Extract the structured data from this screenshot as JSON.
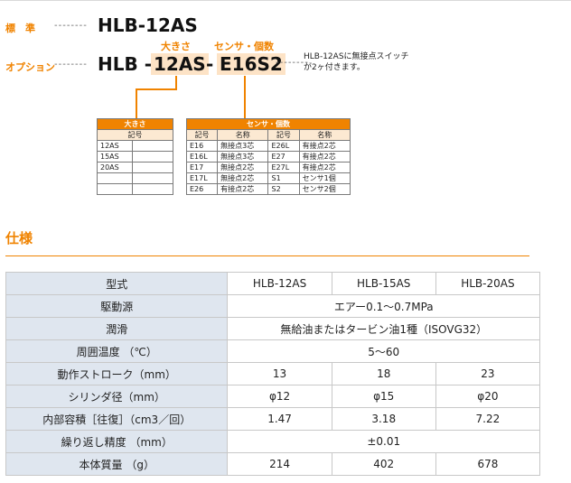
{
  "standard": {
    "label": "標　準",
    "dashes": "--------",
    "model": "HLB-12AS"
  },
  "option": {
    "label": "オプション",
    "dashes": "--------",
    "prefix": "HLB -",
    "size_code": "12AS",
    "dash": "-",
    "sensor_code": "E16S2",
    "size_caption": "大きさ",
    "sensor_caption": "センサ・個数",
    "note_dashes": "--------",
    "note_line1": "HLB-12ASに無接点スイッチ",
    "note_line2": "が2ヶ付きます。"
  },
  "size_table": {
    "title": "大きさ",
    "column": "記号",
    "rows": [
      "12AS",
      "15AS",
      "20AS",
      "",
      ""
    ]
  },
  "sensor_table": {
    "title": "センサ・個数",
    "headers": [
      "記号",
      "名称",
      "記号",
      "名称"
    ],
    "rows": [
      [
        "E16",
        "無接点3芯",
        "E26L",
        "有接点2芯"
      ],
      [
        "E16L",
        "無接点3芯",
        "E27",
        "有接点2芯"
      ],
      [
        "E17",
        "無接点2芯",
        "E27L",
        "有接点2芯"
      ],
      [
        "E17L",
        "無接点2芯",
        "S1",
        "センサ1個"
      ],
      [
        "E26",
        "有接点2芯",
        "S2",
        "センサ2個"
      ]
    ]
  },
  "spec": {
    "title": "仕様",
    "header": {
      "label": "型式",
      "models": [
        "HLB-12AS",
        "HLB-15AS",
        "HLB-20AS"
      ]
    },
    "rows": [
      {
        "label": "駆動源",
        "span": true,
        "value": "エアー0.1～0.7MPa"
      },
      {
        "label": "潤滑",
        "span": true,
        "value": "無給油またはタービン油1種（ISOVG32）"
      },
      {
        "label": "周囲温度 （℃）",
        "span": true,
        "value": "5～60"
      },
      {
        "label": "動作ストローク（mm）",
        "span": false,
        "values": [
          "13",
          "18",
          "23"
        ]
      },
      {
        "label": "シリンダ径（mm）",
        "span": false,
        "values": [
          "φ12",
          "φ15",
          "φ20"
        ]
      },
      {
        "label": "内部容積［往復］（cm3／回）",
        "span": false,
        "values": [
          "1.47",
          "3.18",
          "7.22"
        ]
      },
      {
        "label": "繰り返し精度 （mm）",
        "span": true,
        "value": "±0.01"
      },
      {
        "label": "本体質量 （g）",
        "span": false,
        "values": [
          "214",
          "402",
          "678"
        ]
      }
    ]
  },
  "colors": {
    "accent": "#f08300",
    "header_bg": "#dfe6ef",
    "highlight": "#fde3c6"
  }
}
